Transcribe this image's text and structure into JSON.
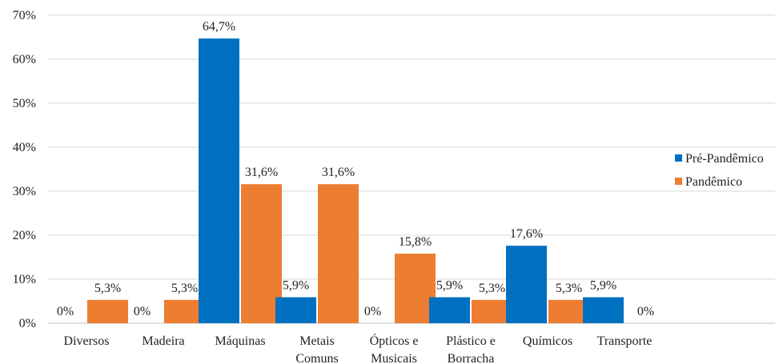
{
  "chart_data": {
    "type": "bar",
    "categories": [
      [
        "Diversos"
      ],
      [
        "Madeira"
      ],
      [
        "Máquinas"
      ],
      [
        "Metais",
        "Comuns"
      ],
      [
        "Ópticos e",
        "Musicais"
      ],
      [
        "Plástico e",
        "Borracha"
      ],
      [
        "Químicos"
      ],
      [
        "Transporte"
      ]
    ],
    "series": [
      {
        "name": "Pré-Pandêmico",
        "color": "#0070C0",
        "values": [
          0,
          0,
          64.7,
          5.9,
          0,
          5.9,
          17.6,
          5.9
        ],
        "labels": [
          "0%",
          "0%",
          "64,7%",
          "5,9%",
          "0%",
          "5,9%",
          "17,6%",
          "5,9%"
        ]
      },
      {
        "name": "Pandêmico",
        "color": "#ED7D31",
        "values": [
          5.3,
          5.3,
          31.6,
          31.6,
          15.8,
          5.3,
          5.3,
          0
        ],
        "labels": [
          "5,3%",
          "5,3%",
          "31,6%",
          "31,6%",
          "15,8%",
          "5,3%",
          "5,3%",
          "0%"
        ]
      }
    ],
    "y_ticks": [
      "0%",
      "10%",
      "20%",
      "30%",
      "40%",
      "50%",
      "60%",
      "70%"
    ],
    "ylim": [
      0,
      70
    ],
    "grid": true,
    "legend_position": "right",
    "title": "",
    "xlabel": "",
    "ylabel": ""
  }
}
